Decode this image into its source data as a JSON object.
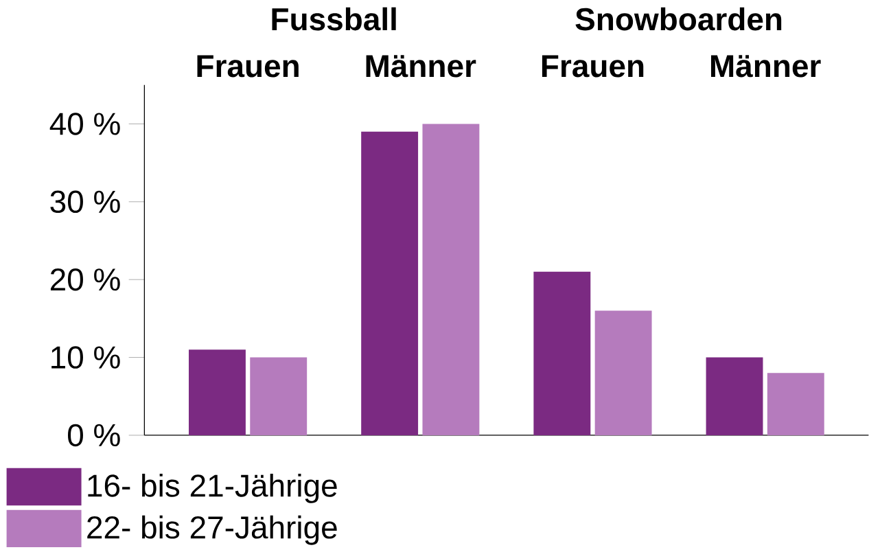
{
  "chart_data": {
    "type": "bar",
    "categories": [
      "Frauen",
      "Männer",
      "Frauen",
      "Männer"
    ],
    "series": [
      {
        "name": "16- bis 21-Jährige",
        "color": "#7b2a82",
        "values": [
          11,
          39,
          21,
          10
        ]
      },
      {
        "name": "22- bis 27-Jährige",
        "color": "#b57bbd",
        "values": [
          10,
          40,
          16,
          8
        ]
      }
    ],
    "annotations": [
      "Fussball",
      "Snowboarden"
    ],
    "ylim": [
      0,
      45
    ],
    "yticks": [
      {
        "value": 0,
        "label": "0 %"
      },
      {
        "value": 10,
        "label": "10 %"
      },
      {
        "value": 20,
        "label": "20 %"
      },
      {
        "value": 30,
        "label": "30 %"
      },
      {
        "value": 40,
        "label": "40 %"
      }
    ],
    "grid": false,
    "legend": "bottom left"
  }
}
